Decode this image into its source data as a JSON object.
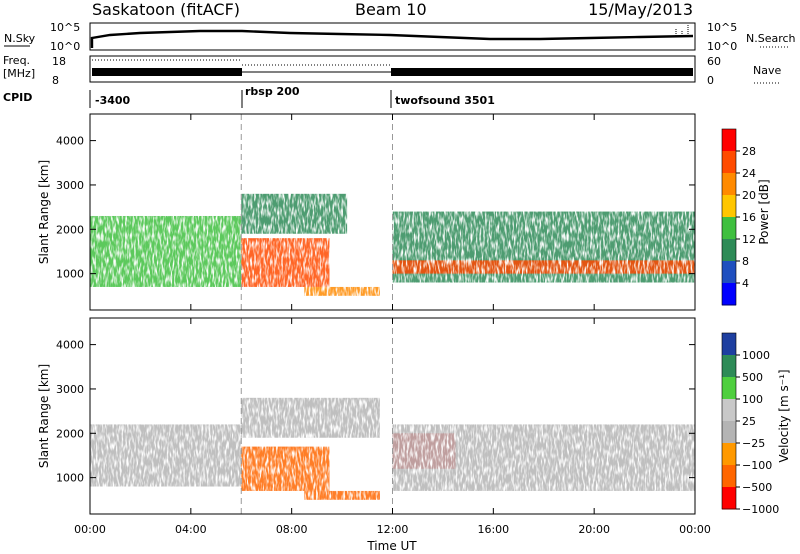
{
  "header": {
    "station": "Saskatoon (fitACF)",
    "beam": "Beam 10",
    "date": "15/May/2013"
  },
  "top_panels": {
    "nsky_label": "N.Sky",
    "nsky_left_ticks": [
      "10^5",
      "10^0"
    ],
    "nsearch_label": "N.Search",
    "nsearch_right_ticks": [
      "10^5",
      "10^0"
    ],
    "freq_label_line1": "Freq.",
    "freq_label_line2": "[MHz]",
    "freq_ticks": [
      "18",
      "8"
    ],
    "nave_label": "Nave",
    "nave_ticks": [
      "60",
      "0"
    ],
    "cpid_label": "CPID",
    "cpid_segments": [
      {
        "start_hour": 0,
        "label": "-3400"
      },
      {
        "start_hour": 6,
        "label": "rbsp 200"
      },
      {
        "start_hour": 12,
        "label": "twofsound 3501"
      }
    ]
  },
  "chart_data": [
    {
      "type": "heatmap",
      "name": "power",
      "ylabel": "Slant Range [km]",
      "xlabel": "Time UT",
      "x_range_hours": [
        0,
        24
      ],
      "x_ticks": [
        "00:00",
        "04:00",
        "08:00",
        "12:00",
        "16:00",
        "20:00",
        "00:00"
      ],
      "ylim": [
        180,
        4600
      ],
      "y_ticks": [
        1000,
        2000,
        3000,
        4000
      ],
      "colorbar": {
        "label": "Power [dB]",
        "ticks": [
          "28",
          "24",
          "20",
          "16",
          "12",
          "8",
          "4"
        ],
        "colors": [
          "#ff0000",
          "#ff4b00",
          "#ff8a00",
          "#ffc600",
          "#3fbf3f",
          "#2e8b57",
          "#1f4fbf",
          "#0000ff"
        ]
      },
      "regions": [
        {
          "t0": 0.0,
          "t1": 6.0,
          "r0": 700,
          "r1": 2300,
          "level": 12
        },
        {
          "t0": 6.0,
          "t1": 10.2,
          "r0": 1900,
          "r1": 2800,
          "level": 10
        },
        {
          "t0": 6.0,
          "t1": 9.5,
          "r0": 700,
          "r1": 1800,
          "level": 26
        },
        {
          "t0": 8.5,
          "t1": 11.5,
          "r0": 500,
          "r1": 700,
          "level": 22
        },
        {
          "t0": 12.0,
          "t1": 24.0,
          "r0": 800,
          "r1": 2400,
          "level": 10
        },
        {
          "t0": 12.0,
          "t1": 24.0,
          "r0": 1000,
          "r1": 1300,
          "level": 26
        }
      ],
      "dashed_vertical_lines_hours": [
        6,
        12
      ]
    },
    {
      "type": "heatmap",
      "name": "velocity",
      "ylabel": "Slant Range [km]",
      "xlabel": "Time UT",
      "x_range_hours": [
        0,
        24
      ],
      "x_ticks": [
        "00:00",
        "04:00",
        "08:00",
        "12:00",
        "16:00",
        "20:00",
        "00:00"
      ],
      "ylim": [
        180,
        4600
      ],
      "y_ticks": [
        1000,
        2000,
        3000,
        4000
      ],
      "colorbar": {
        "label": "Velocity [m s⁻¹]",
        "ticks": [
          "1000",
          "500",
          "100",
          "25",
          "−25",
          "−100",
          "−500",
          "−1000"
        ],
        "colors": [
          "#1e3fa0",
          "#2e8b57",
          "#4fcf3f",
          "#c8c8c8",
          "#b4b4b4",
          "#ff9900",
          "#ff6600",
          "#ff0000"
        ]
      },
      "regions": [
        {
          "t0": 0.0,
          "t1": 6.0,
          "r0": 800,
          "r1": 2200,
          "velocity": 0
        },
        {
          "t0": 6.0,
          "t1": 11.5,
          "r0": 1900,
          "r1": 2800,
          "velocity": 0
        },
        {
          "t0": 6.0,
          "t1": 9.5,
          "r0": 700,
          "r1": 1700,
          "velocity": -200
        },
        {
          "t0": 8.5,
          "t1": 11.5,
          "r0": 500,
          "r1": 700,
          "velocity": -200
        },
        {
          "t0": 12.0,
          "t1": 14.5,
          "r0": 1200,
          "r1": 2000,
          "velocity": -600
        },
        {
          "t0": 12.0,
          "t1": 24.0,
          "r0": 700,
          "r1": 2200,
          "velocity": 0
        }
      ],
      "dashed_vertical_lines_hours": [
        6,
        12
      ]
    }
  ]
}
